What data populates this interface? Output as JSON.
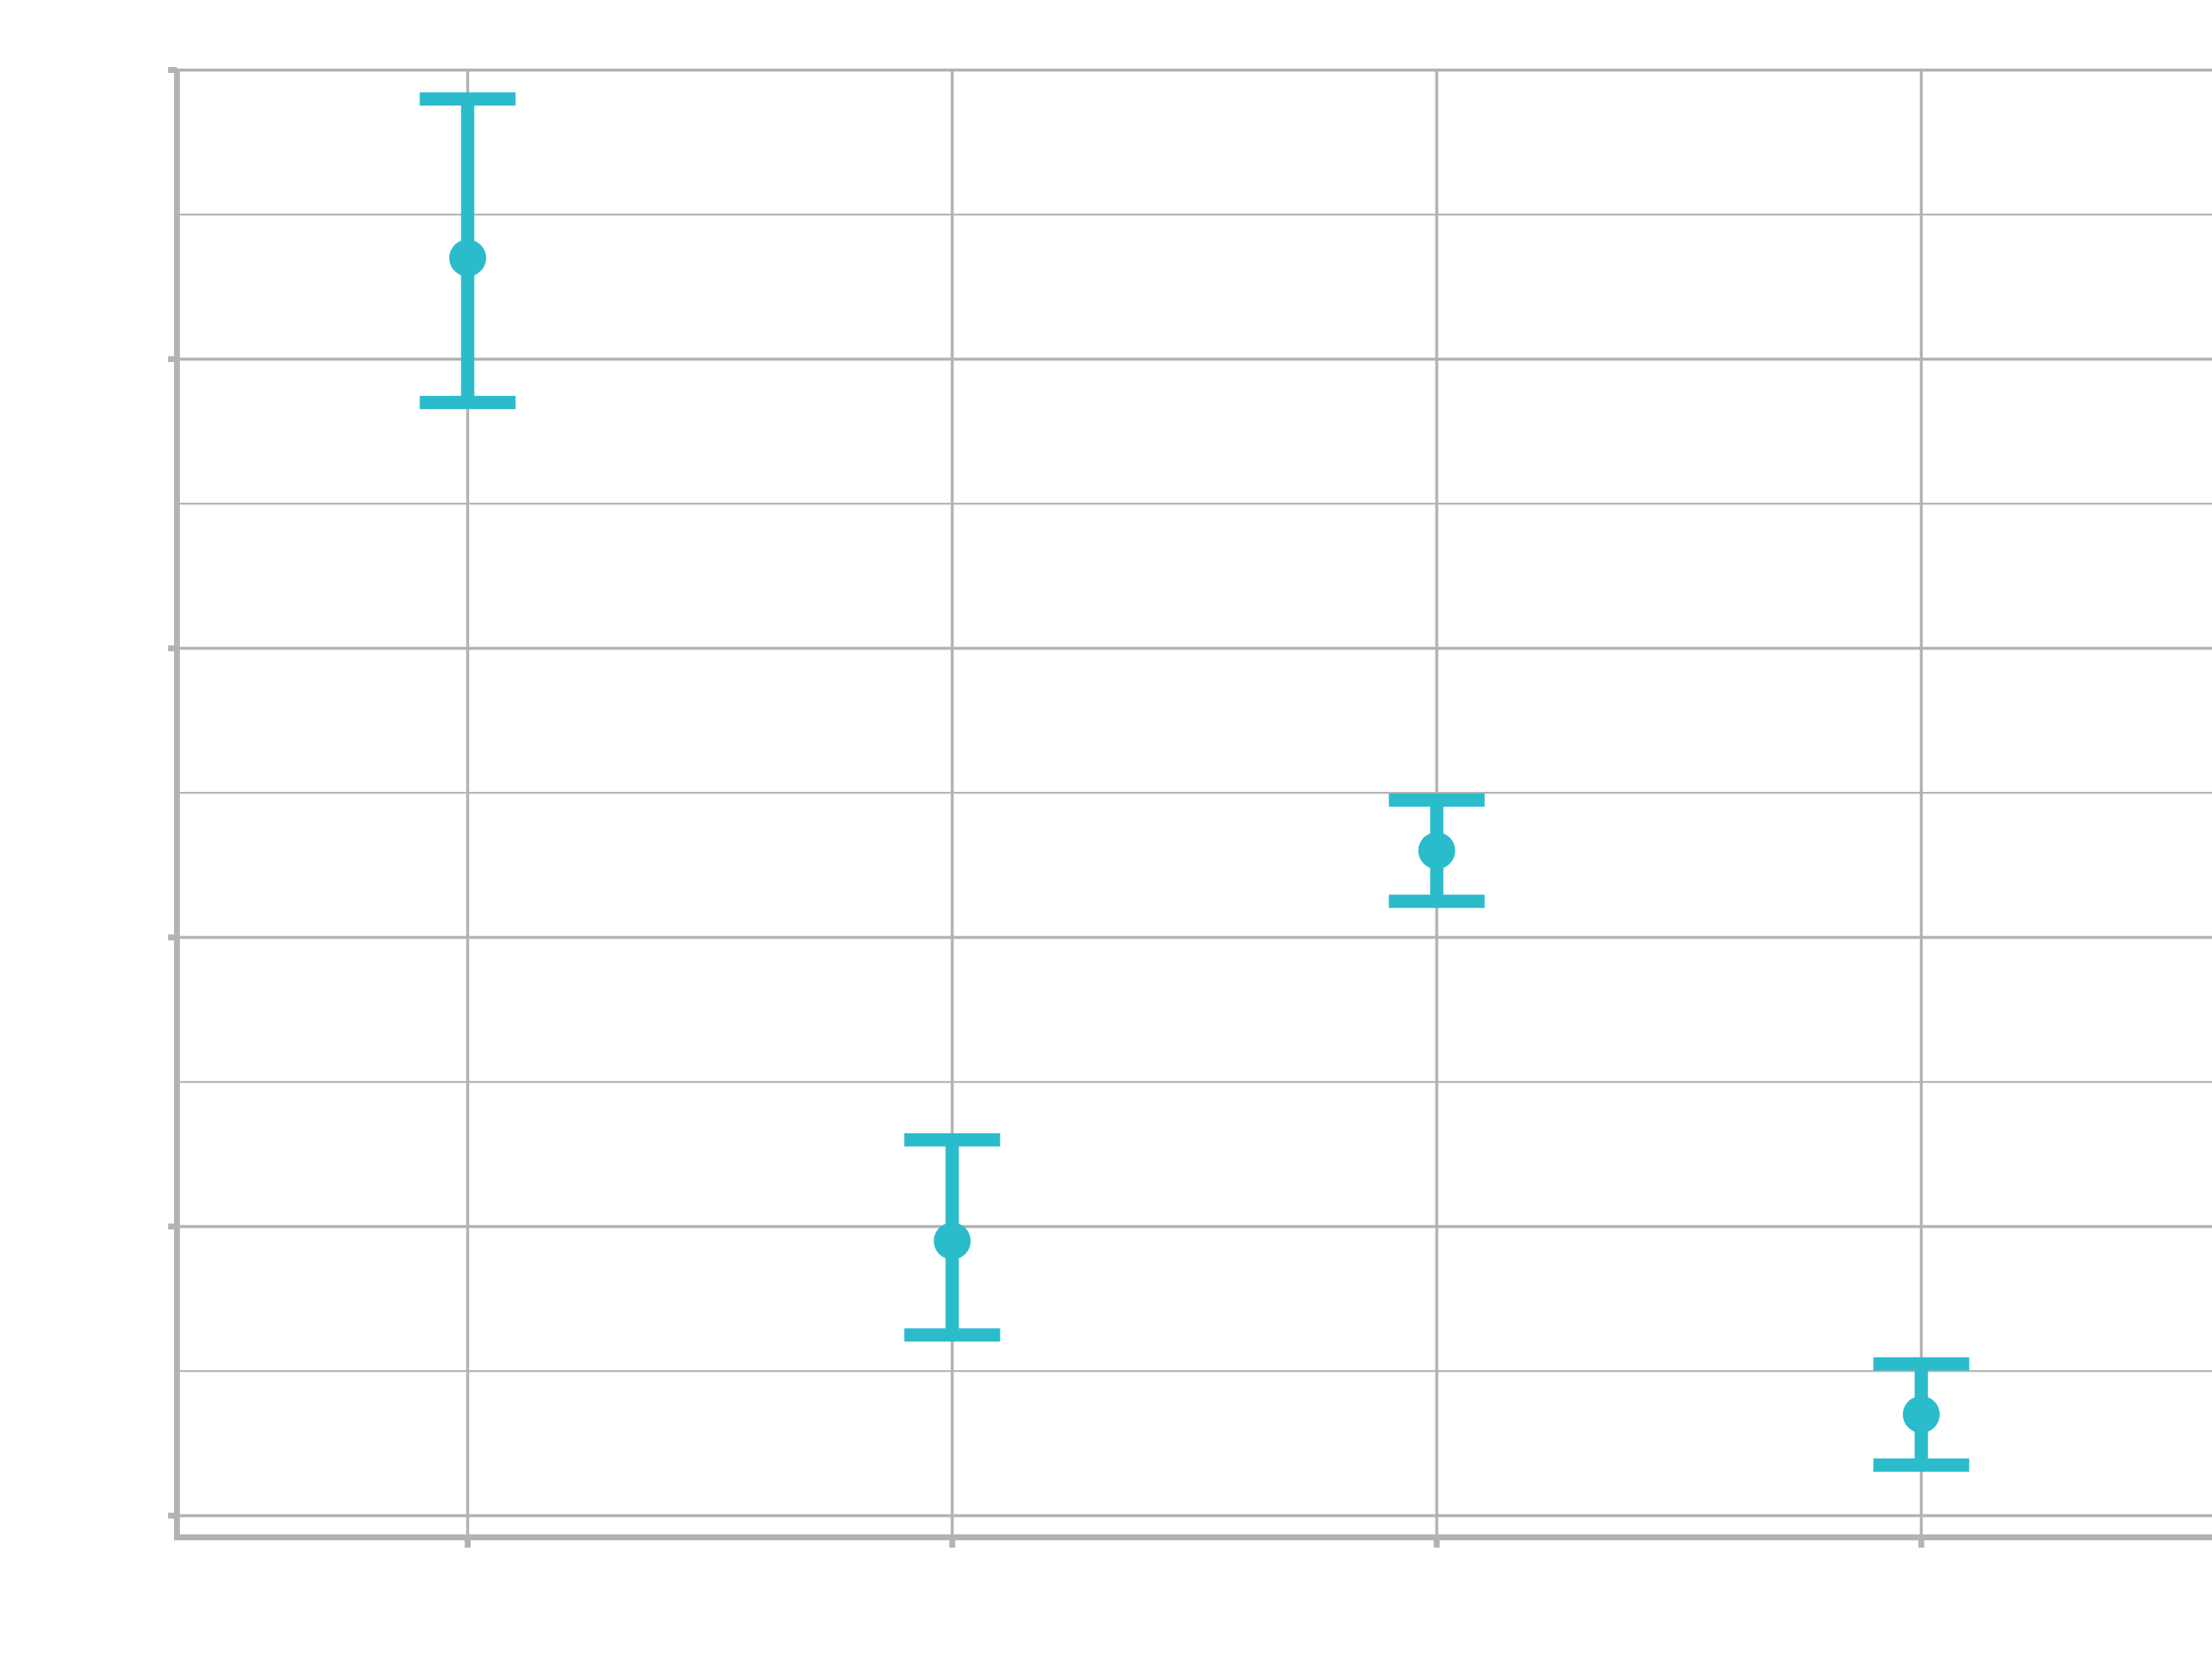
{
  "chart_data": {
    "type": "scatter",
    "title": "",
    "xlabel": "",
    "ylabel": "",
    "x": [
      1,
      2,
      3,
      4
    ],
    "y": [
      8.7,
      1.9,
      4.6,
      0.7
    ],
    "error_low": [
      7.7,
      1.25,
      4.25,
      0.35
    ],
    "error_high": [
      9.8,
      2.6,
      4.95,
      1.05
    ],
    "xlim": [
      0.4,
      4.6
    ],
    "ylim": [
      -0.15,
      10.0
    ],
    "ytick_values": [
      0,
      2,
      4,
      6,
      8,
      10
    ],
    "xtick_values": [
      1,
      2,
      3,
      4
    ],
    "grid": true,
    "legend": "none",
    "colors": {
      "series": "#2bbccc",
      "grid": "#b3b3b3",
      "axis": "#b3b3b3",
      "background": "#ffffff"
    }
  }
}
